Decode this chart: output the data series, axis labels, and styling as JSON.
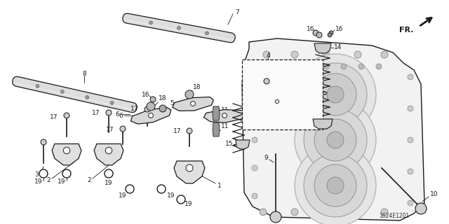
{
  "bg_color": "#ffffff",
  "diagram_id": "1624E1201",
  "line_color": "#1a1a1a",
  "label_fontsize": 6.5,
  "title_fontsize": 7
}
